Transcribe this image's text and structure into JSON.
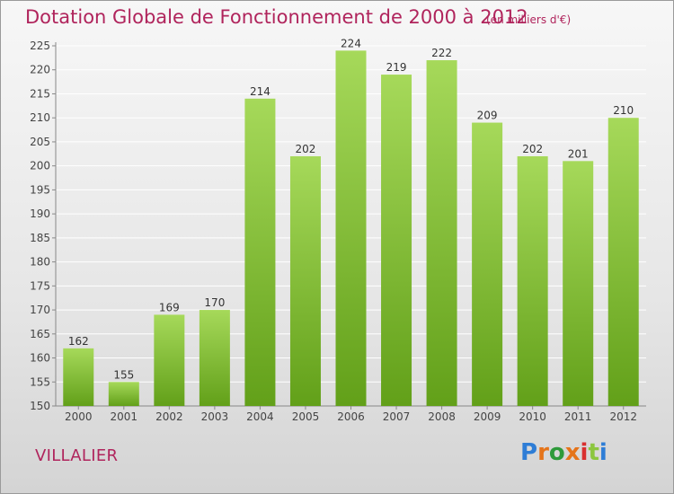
{
  "header": {
    "title": "Dotation Globale de Fonctionnement de 2000 à 2012",
    "unit": "(en milliers d'€)"
  },
  "commune": "VILLALIER",
  "logo": {
    "text": "Proxiti",
    "letters": [
      "P",
      "r",
      "o",
      "x",
      "i",
      "t",
      "i"
    ],
    "colors": [
      "#2e7dd6",
      "#e5741a",
      "#2e9a3a",
      "#e5741a",
      "#d93030",
      "#8cc63f",
      "#2e7dd6"
    ]
  },
  "chart_data": {
    "type": "bar",
    "categories": [
      "2000",
      "2001",
      "2002",
      "2003",
      "2004",
      "2005",
      "2006",
      "2007",
      "2008",
      "2009",
      "2010",
      "2011",
      "2012"
    ],
    "values": [
      162,
      155,
      169,
      170,
      214,
      202,
      224,
      219,
      222,
      209,
      202,
      201,
      210
    ],
    "ylim": [
      150,
      225
    ],
    "yticks": [
      150,
      155,
      160,
      165,
      170,
      175,
      180,
      185,
      190,
      195,
      200,
      205,
      210,
      215,
      220,
      225
    ],
    "grid": true,
    "colors": {
      "bar_top": "#a6d95a",
      "bar_bottom": "#62a019",
      "grid": "#ffffff"
    }
  }
}
